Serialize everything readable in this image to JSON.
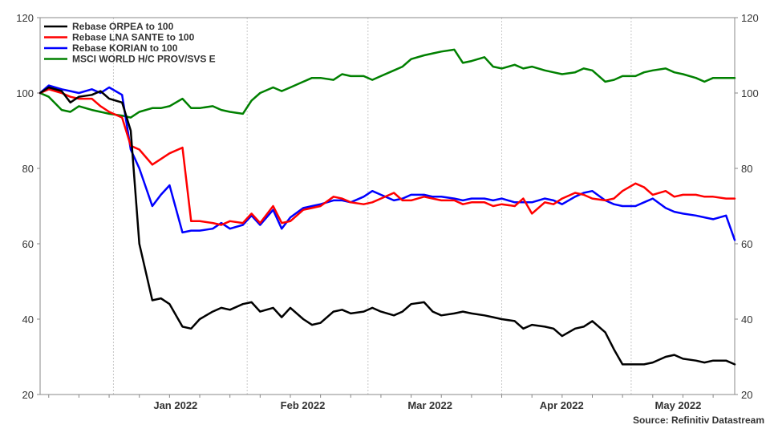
{
  "chart_data": {
    "type": "line",
    "title": "",
    "xlabel": "",
    "ylabel": "",
    "ylim": [
      20,
      120
    ],
    "yticks": [
      20,
      40,
      60,
      80,
      100,
      120
    ],
    "x_axis_labels": [
      "Jan 2022",
      "Feb 2022",
      "Mar 2022",
      "Apr 2022",
      "May 2022"
    ],
    "grid": "vertical",
    "legend_position": "top-left",
    "source": "Source: Refinitiv Datastream",
    "x": [
      "2021-12-15",
      "2021-12-17",
      "2021-12-20",
      "2021-12-22",
      "2021-12-24",
      "2021-12-27",
      "2021-12-29",
      "2021-12-31",
      "2022-01-03",
      "2022-01-05",
      "2022-01-07",
      "2022-01-10",
      "2022-01-12",
      "2022-01-14",
      "2022-01-17",
      "2022-01-19",
      "2022-01-21",
      "2022-01-24",
      "2022-01-26",
      "2022-01-28",
      "2022-01-31",
      "2022-02-02",
      "2022-02-04",
      "2022-02-07",
      "2022-02-09",
      "2022-02-11",
      "2022-02-14",
      "2022-02-16",
      "2022-02-18",
      "2022-02-21",
      "2022-02-23",
      "2022-02-25",
      "2022-02-28",
      "2022-03-02",
      "2022-03-04",
      "2022-03-07",
      "2022-03-09",
      "2022-03-11",
      "2022-03-14",
      "2022-03-16",
      "2022-03-18",
      "2022-03-21",
      "2022-03-23",
      "2022-03-25",
      "2022-03-28",
      "2022-03-30",
      "2022-04-01",
      "2022-04-04",
      "2022-04-06",
      "2022-04-08",
      "2022-04-11",
      "2022-04-13",
      "2022-04-15",
      "2022-04-18",
      "2022-04-20",
      "2022-04-22",
      "2022-04-25",
      "2022-04-27",
      "2022-04-29",
      "2022-05-02",
      "2022-05-04",
      "2022-05-06",
      "2022-05-09",
      "2022-05-11",
      "2022-05-13",
      "2022-05-16",
      "2022-05-18",
      "2022-05-20",
      "2022-05-23",
      "2022-05-25"
    ],
    "series": [
      {
        "name": "Rebase ORPEA to 100",
        "color": "#000000",
        "values": [
          100,
          101.5,
          100.5,
          97.5,
          99,
          99.5,
          100.5,
          98.5,
          97.5,
          90,
          60,
          45,
          45.5,
          44,
          38,
          37.5,
          40,
          42,
          43,
          42.5,
          44,
          44.5,
          42,
          43,
          40.5,
          43,
          40,
          38.5,
          39,
          42,
          42.5,
          41.5,
          42,
          43,
          42,
          41,
          42,
          44,
          44.5,
          42,
          41,
          41.5,
          42,
          41.5,
          41,
          40.5,
          40,
          39.5,
          37.5,
          38.5,
          38,
          37.5,
          35.5,
          37.5,
          38,
          39.5,
          36.5,
          32,
          28,
          28,
          28,
          28.5,
          30,
          30.5,
          29.5,
          29,
          28.5,
          29,
          29,
          28
        ]
      },
      {
        "name": "Rebase LNA SANTE to 100",
        "color": "#ff0000",
        "values": [
          100,
          101,
          100,
          99,
          98.5,
          98.5,
          96.5,
          95,
          93.5,
          86,
          85,
          81,
          82.5,
          84,
          85.5,
          66,
          66,
          65.5,
          65,
          66,
          65.5,
          68,
          65.5,
          70,
          65.5,
          66,
          69,
          69.5,
          70,
          72.5,
          72,
          71,
          70.5,
          71,
          72,
          73.5,
          71.5,
          71.5,
          72.5,
          72,
          71.5,
          71.5,
          70.5,
          71,
          71,
          70,
          70.5,
          70,
          72,
          68,
          71,
          70.5,
          72,
          73.5,
          73,
          72,
          71.5,
          72,
          74,
          76,
          75,
          73,
          74,
          72.5,
          73,
          73,
          72.5,
          72.5,
          72,
          72
        ]
      },
      {
        "name": "Rebase KORIAN to 100",
        "color": "#0000ff",
        "values": [
          100,
          102,
          101,
          100.5,
          100,
          101,
          100,
          101.5,
          99.5,
          85,
          80,
          70,
          73,
          75.5,
          63,
          63.5,
          63.5,
          64,
          65.5,
          64,
          65,
          67.5,
          65,
          69,
          64,
          67,
          69.5,
          70,
          70.5,
          71.5,
          71.5,
          71,
          72.5,
          74,
          73,
          71.5,
          72,
          73,
          73,
          72.5,
          72.5,
          72,
          71.5,
          72,
          72,
          71.5,
          72,
          71,
          71,
          71,
          72,
          71.5,
          70.5,
          72.5,
          73.5,
          74,
          71.5,
          70.5,
          70,
          70,
          71,
          72,
          69.5,
          68.5,
          68,
          67.5,
          67,
          66.5,
          67.5,
          61
        ]
      },
      {
        "name": "MSCI WORLD H/C PROV/SVS E",
        "color": "#008000",
        "values": [
          100,
          99,
          95.5,
          95,
          96.5,
          95.5,
          95,
          94.5,
          94,
          93.5,
          95,
          96,
          96,
          96.5,
          98.5,
          96,
          96,
          96.5,
          95.5,
          95,
          94.5,
          98,
          100,
          101.5,
          100.5,
          101.5,
          103,
          104,
          104,
          103.5,
          105,
          104.5,
          104.5,
          103.5,
          104.5,
          106,
          107,
          109,
          110,
          110.5,
          111,
          111.5,
          108,
          108.5,
          109.5,
          107,
          106.5,
          107.5,
          106.5,
          107,
          106,
          105.5,
          105,
          105.5,
          106.5,
          106,
          103,
          103.5,
          104.5,
          104.5,
          105.5,
          106,
          106.5,
          105.5,
          105,
          104,
          103,
          104,
          104,
          104
        ]
      }
    ]
  }
}
